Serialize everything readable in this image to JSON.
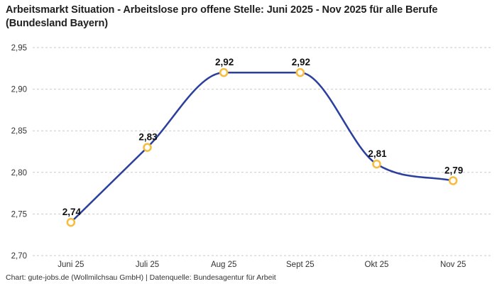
{
  "header": {
    "title": "Arbeitsmarkt Situation - Arbeitslose pro offene Stelle: Juni 2025 - Nov 2025 für alle Berufe (Bundesland Bayern)"
  },
  "footer": {
    "credit": "Chart: gute-jobs.de (Wollmilchsau GmbH) | Datenquelle: Bundesagentur für Arbeit"
  },
  "colors": {
    "line": "#2b3f9e",
    "marker": "#f7bb3d",
    "marker_fill": "#ffffff",
    "grid": "#c9c9c9",
    "tick_text": "#333333",
    "title_text": "#1f1f1f"
  },
  "chart_data": {
    "type": "line",
    "title": "Arbeitsmarkt Situation - Arbeitslose pro offene Stelle: Juni 2025 - Nov 2025 für alle Berufe (Bundesland Bayern)",
    "categories": [
      "Juni 25",
      "Juli 25",
      "Aug 25",
      "Sept 25",
      "Okt 25",
      "Nov 25"
    ],
    "values": [
      2.74,
      2.83,
      2.92,
      2.92,
      2.81,
      2.79
    ],
    "point_labels": [
      "2,74",
      "2,83",
      "2,92",
      "2,92",
      "2,81",
      "2,79"
    ],
    "y_ticks": [
      {
        "value": 2.95,
        "label": "2,95"
      },
      {
        "value": 2.9,
        "label": "2,90"
      },
      {
        "value": 2.85,
        "label": "2,85"
      },
      {
        "value": 2.8,
        "label": "2,80"
      },
      {
        "value": 2.75,
        "label": "2,75"
      },
      {
        "value": 2.7,
        "label": "2,70"
      }
    ],
    "ylim": [
      2.7,
      2.95
    ],
    "xlabel": "",
    "ylabel": "",
    "grid": true,
    "grid_style": "dashed-horizontal",
    "legend": "none",
    "line_style": "smooth-monotone",
    "marker": "open-circle"
  }
}
